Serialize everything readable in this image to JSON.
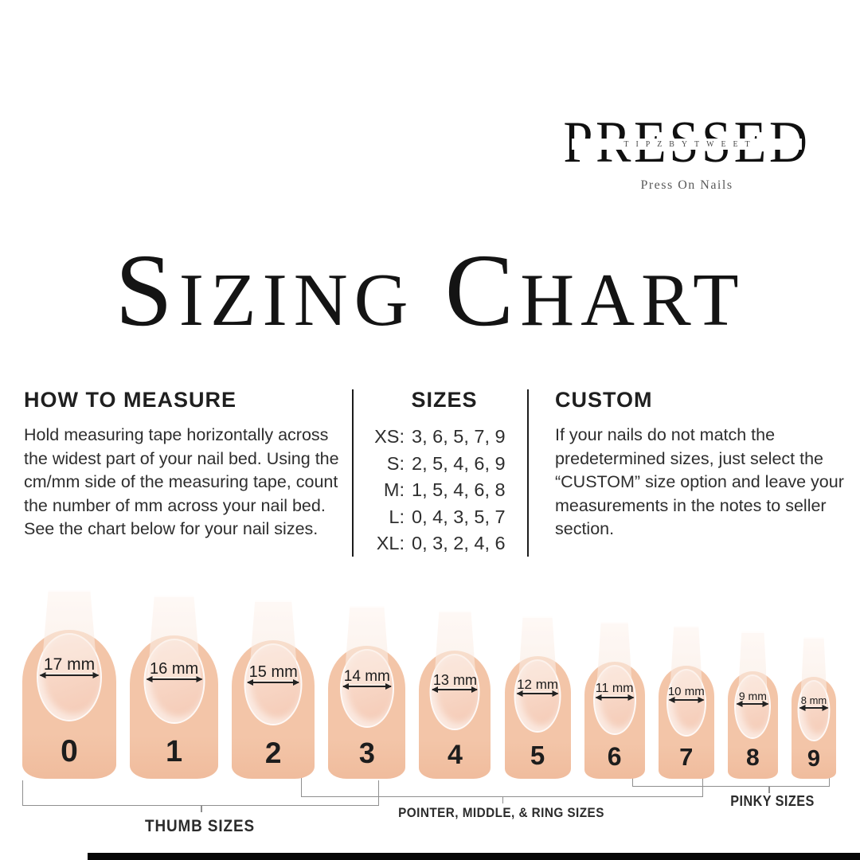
{
  "brand": {
    "wordmark": "PRESSED",
    "overlay": "TIPZBYTWEET",
    "tagline": "Press On Nails"
  },
  "title": {
    "word1_lead": "S",
    "word1_rest": "IZING",
    "word2_lead": "C",
    "word2_rest": "HART"
  },
  "how_to_measure": {
    "heading": "HOW TO MEASURE",
    "body": "Hold measuring tape horizontally across the widest part of your nail bed. Using the cm/mm side of the measuring tape, count the number of mm across your nail bed. See the chart below for your nail sizes."
  },
  "sizes": {
    "heading": "SIZES",
    "rows": [
      {
        "label": "XS:",
        "values": "3, 6, 5, 7, 9"
      },
      {
        "label": "S:",
        "values": "2, 5, 4, 6, 9"
      },
      {
        "label": "M:",
        "values": "1, 5, 4, 6, 8"
      },
      {
        "label": "L:",
        "values": "0, 4, 3, 5, 7"
      },
      {
        "label": "XL:",
        "values": "0, 3, 2, 4, 6"
      }
    ]
  },
  "custom": {
    "heading": "CUSTOM",
    "body": "If your nails do not match the predetermined sizes, just select the “CUSTOM” size option and leave your measurements in the notes to seller section."
  },
  "nails": [
    {
      "mm": 17,
      "size_label": "17 mm",
      "number": "0"
    },
    {
      "mm": 16,
      "size_label": "16 mm",
      "number": "1"
    },
    {
      "mm": 15,
      "size_label": "15 mm",
      "number": "2"
    },
    {
      "mm": 14,
      "size_label": "14 mm",
      "number": "3"
    },
    {
      "mm": 13,
      "size_label": "13 mm",
      "number": "4"
    },
    {
      "mm": 12,
      "size_label": "12 mm",
      "number": "5"
    },
    {
      "mm": 11,
      "size_label": "11 mm",
      "number": "6"
    },
    {
      "mm": 10,
      "size_label": "10 mm",
      "number": "7"
    },
    {
      "mm": 9,
      "size_label": "9 mm",
      "number": "8"
    },
    {
      "mm": 8,
      "size_label": "8 mm",
      "number": "9"
    }
  ],
  "size_groups": [
    {
      "label": "THUMB SIZES"
    },
    {
      "label": "POINTER, MIDDLE, & RING SIZES"
    },
    {
      "label": "PINKY SIZES"
    }
  ],
  "colors": {
    "skin": "#f3c5a8",
    "skin_deep": "#f0bc9d",
    "nail_bed_light": "#fadfd1",
    "nail_bed": "#f5cdb9",
    "tip_light": "#fdf4ef",
    "tip": "#fae8dd",
    "ink": "#1f1f1f",
    "bracket_line": "#8f8f8f"
  }
}
